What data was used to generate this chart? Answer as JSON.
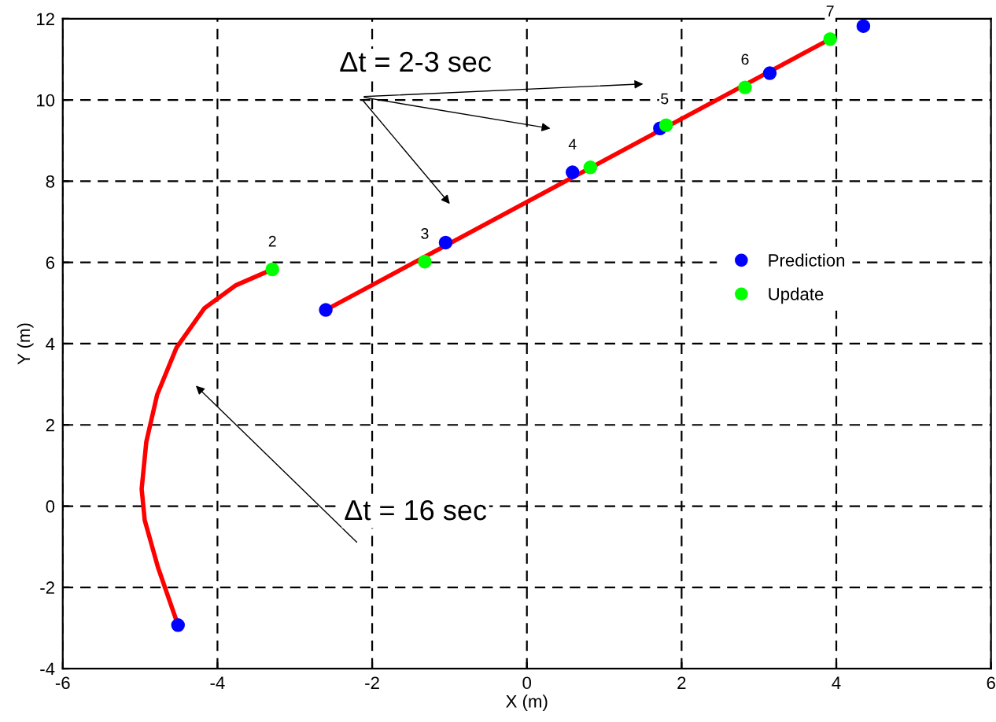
{
  "chart_data": {
    "type": "scatter",
    "xlabel": "X (m)",
    "ylabel": "Y (m)",
    "xlim": [
      -6,
      6
    ],
    "ylim": [
      -4,
      12
    ],
    "xticks": [
      -6,
      -4,
      -2,
      0,
      2,
      4,
      6
    ],
    "yticks": [
      -4,
      -2,
      0,
      2,
      4,
      6,
      8,
      10,
      12
    ],
    "grid": true,
    "legend": "right",
    "series": [
      {
        "type": "line",
        "color": "#ff0000",
        "x": [
          -4.51,
          -4.77,
          -4.94,
          -4.98,
          -4.92,
          -4.78,
          -4.53,
          -4.17,
          -3.76,
          -3.29
        ],
        "values": [
          -2.93,
          -1.5,
          -0.35,
          0.42,
          1.58,
          2.74,
          3.9,
          4.87,
          5.44,
          5.83
        ]
      },
      {
        "type": "line",
        "color": "#ff0000",
        "x": [
          -2.6,
          3.92
        ],
        "values": [
          4.83,
          11.5
        ]
      },
      {
        "name": "Prediction",
        "color": "#0000ff",
        "x": [
          -4.51,
          -2.6,
          -1.05,
          0.59,
          1.72,
          3.14,
          4.35
        ],
        "values": [
          -2.93,
          4.83,
          6.49,
          8.22,
          9.3,
          10.66,
          11.82
        ]
      },
      {
        "name": "Update",
        "color": "#00ff00",
        "x": [
          -3.29,
          -1.32,
          0.82,
          1.8,
          2.82,
          3.92
        ],
        "values": [
          5.83,
          6.02,
          8.34,
          9.38,
          10.31,
          11.5
        ]
      }
    ],
    "annotations": [
      "Δt = 2-3 sec",
      "Δt = 16 sec",
      {
        "text": "2",
        "x": -3.29,
        "y": 5.83
      },
      {
        "text": "3",
        "x": -1.32,
        "y": 6.02
      },
      {
        "text": "4",
        "x": 0.59,
        "y": 8.22
      },
      {
        "text": "5",
        "x": 1.78,
        "y": 9.34
      },
      {
        "text": "6",
        "x": 2.82,
        "y": 10.31
      },
      {
        "text": "7",
        "x": 3.92,
        "y": 11.5
      }
    ]
  }
}
